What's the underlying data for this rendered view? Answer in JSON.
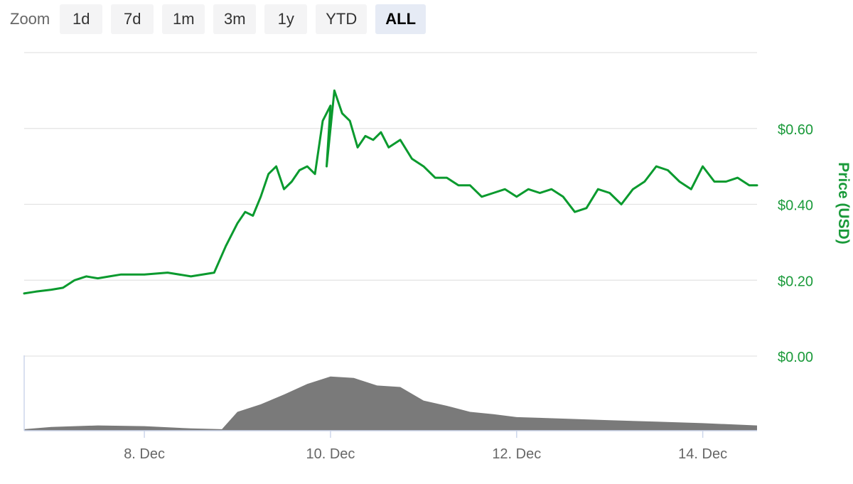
{
  "zoom": {
    "label": "Zoom",
    "buttons": [
      "1d",
      "7d",
      "1m",
      "3m",
      "1y",
      "YTD",
      "ALL"
    ],
    "active": "ALL"
  },
  "colors": {
    "price_line": "#0a9a2e",
    "price_axis": "#1a9a3a",
    "volume_fill": "#7a7a7a",
    "grid": "#e3e3e3",
    "nav_axis": "#ccd6eb",
    "x_tick_text": "#666666"
  },
  "chart_data": {
    "type": "line",
    "grid": true,
    "y_axis": {
      "title": "Price (USD)",
      "position": "right",
      "ylim": [
        0,
        0.8
      ],
      "ticks": [
        0,
        0.2,
        0.4,
        0.6
      ],
      "tick_labels": [
        "$0.00",
        "$0.20",
        "$0.40",
        "$0.60"
      ]
    },
    "x_axis": {
      "xlim": [
        "2017-12-06T17:00",
        "2017-12-14T14:00"
      ],
      "ticks": [
        "2017-12-08",
        "2017-12-10",
        "2017-12-12",
        "2017-12-14"
      ],
      "tick_labels": [
        "8. Dec",
        "10. Dec",
        "12. Dec",
        "14. Dec"
      ]
    },
    "series": [
      {
        "kind": "line",
        "x": [
          "2017-12-06T17:00",
          "2017-12-06T20:00",
          "2017-12-07T00:00",
          "2017-12-07T03:00",
          "2017-12-07T06:00",
          "2017-12-07T09:00",
          "2017-12-07T12:00",
          "2017-12-07T15:00",
          "2017-12-07T18:00",
          "2017-12-08T00:00",
          "2017-12-08T06:00",
          "2017-12-08T12:00",
          "2017-12-08T18:00",
          "2017-12-08T21:00",
          "2017-12-09T00:00",
          "2017-12-09T02:00",
          "2017-12-09T04:00",
          "2017-12-09T06:00",
          "2017-12-09T08:00",
          "2017-12-09T10:00",
          "2017-12-09T12:00",
          "2017-12-09T14:00",
          "2017-12-09T16:00",
          "2017-12-09T18:00",
          "2017-12-09T20:00",
          "2017-12-09T22:00",
          "2017-12-10T00:00",
          "2017-12-09T23:00",
          "2017-12-10T01:00",
          "2017-12-10T03:00",
          "2017-12-10T05:00",
          "2017-12-10T07:00",
          "2017-12-10T09:00",
          "2017-12-10T11:00",
          "2017-12-10T13:00",
          "2017-12-10T15:00",
          "2017-12-10T18:00",
          "2017-12-10T21:00",
          "2017-12-11T00:00",
          "2017-12-11T03:00",
          "2017-12-11T06:00",
          "2017-12-11T09:00",
          "2017-12-11T12:00",
          "2017-12-11T15:00",
          "2017-12-11T18:00",
          "2017-12-11T21:00",
          "2017-12-12T00:00",
          "2017-12-12T03:00",
          "2017-12-12T06:00",
          "2017-12-12T09:00",
          "2017-12-12T12:00",
          "2017-12-12T15:00",
          "2017-12-12T18:00",
          "2017-12-12T21:00",
          "2017-12-13T00:00",
          "2017-12-13T03:00",
          "2017-12-13T06:00",
          "2017-12-13T09:00",
          "2017-12-13T12:00",
          "2017-12-13T15:00",
          "2017-12-13T18:00",
          "2017-12-13T21:00",
          "2017-12-14T00:00",
          "2017-12-14T03:00",
          "2017-12-14T06:00",
          "2017-12-14T09:00",
          "2017-12-14T12:00",
          "2017-12-14T14:00"
        ],
        "values": [
          0.165,
          0.17,
          0.175,
          0.18,
          0.2,
          0.21,
          0.205,
          0.21,
          0.215,
          0.215,
          0.22,
          0.21,
          0.22,
          0.29,
          0.35,
          0.38,
          0.37,
          0.42,
          0.48,
          0.5,
          0.44,
          0.46,
          0.49,
          0.5,
          0.48,
          0.62,
          0.66,
          0.5,
          0.7,
          0.64,
          0.62,
          0.55,
          0.58,
          0.57,
          0.59,
          0.55,
          0.57,
          0.52,
          0.5,
          0.47,
          0.47,
          0.45,
          0.45,
          0.42,
          0.43,
          0.44,
          0.42,
          0.44,
          0.43,
          0.44,
          0.42,
          0.38,
          0.39,
          0.44,
          0.43,
          0.4,
          0.44,
          0.46,
          0.5,
          0.49,
          0.46,
          0.44,
          0.5,
          0.46,
          0.46,
          0.47,
          0.45,
          0.45
        ]
      },
      {
        "kind": "volume-area",
        "x": [
          "2017-12-06T17:00",
          "2017-12-07T00:00",
          "2017-12-07T12:00",
          "2017-12-08T00:00",
          "2017-12-08T12:00",
          "2017-12-08T20:00",
          "2017-12-09T00:00",
          "2017-12-09T06:00",
          "2017-12-09T12:00",
          "2017-12-09T18:00",
          "2017-12-10T00:00",
          "2017-12-10T06:00",
          "2017-12-10T12:00",
          "2017-12-10T18:00",
          "2017-12-11T00:00",
          "2017-12-11T06:00",
          "2017-12-11T12:00",
          "2017-12-11T18:00",
          "2017-12-12T00:00",
          "2017-12-12T12:00",
          "2017-12-13T00:00",
          "2017-12-13T12:00",
          "2017-12-14T00:00",
          "2017-12-14T14:00"
        ],
        "values": [
          0.02,
          0.05,
          0.07,
          0.06,
          0.03,
          0.02,
          0.25,
          0.35,
          0.48,
          0.62,
          0.72,
          0.7,
          0.6,
          0.58,
          0.4,
          0.33,
          0.25,
          0.22,
          0.18,
          0.16,
          0.14,
          0.12,
          0.1,
          0.07
        ]
      }
    ]
  }
}
